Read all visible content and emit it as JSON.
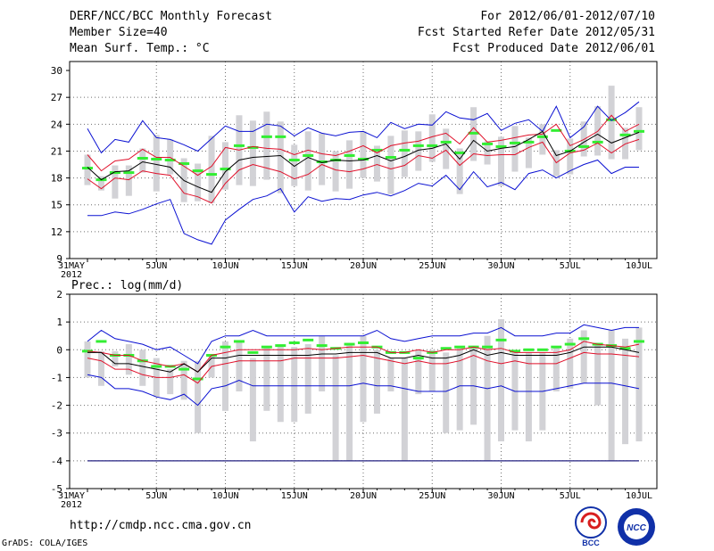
{
  "header": {
    "title": "DERF/NCC/BCC Monthly Forecast",
    "member_size": "Member Size=40",
    "variable_top": "Mean Surf. Temp.: °C",
    "period": "For 2012/06/01-2012/07/10",
    "started": "Fcst Started Refer Date 2012/05/31",
    "produced": "Fcst Produced Date 2012/06/01"
  },
  "footer": {
    "url": "http://cmdp.ncc.cma.gov.cn",
    "grads": "GrADS: COLA/IGES",
    "logo_bcc": "BCC",
    "logo_ncc": "NCC"
  },
  "colors": {
    "bar": "#d2d2d6",
    "mean": "#000000",
    "spread": "#e0102a",
    "extreme": "#0a10d2",
    "climo": "#33ee33",
    "zeroline": "#232080",
    "grid": "#6f6f6f"
  },
  "chart_data": [
    {
      "type": "line",
      "title": "Mean Surf. Temp.: °C",
      "x_tick_labels": [
        "31MAY\n2012",
        "5JUN",
        "10JUN",
        "15JUN",
        "20JUN",
        "25JUN",
        "30JUN",
        "5JUL",
        "10JUL"
      ],
      "ylim": [
        9,
        31
      ],
      "y_ticks": [
        9,
        12,
        15,
        18,
        21,
        24,
        27,
        30
      ],
      "grid": true,
      "series": [
        {
          "name": "max",
          "values": [
            23.5,
            20.8,
            22.3,
            22.0,
            24.4,
            22.5,
            22.3,
            21.7,
            21.0,
            22.4,
            23.8,
            23.2,
            23.2,
            24.0,
            23.8,
            22.7,
            23.6,
            23.0,
            22.7,
            23.1,
            23.2,
            22.5,
            24.2,
            23.5,
            24.0,
            23.9,
            25.4,
            24.7,
            24.5,
            25.2,
            23.3,
            24.1,
            24.5,
            23.2,
            26.0,
            22.5,
            23.7,
            26.0,
            24.4,
            25.3,
            26.5
          ]
        },
        {
          "name": "upper",
          "values": [
            20.6,
            18.8,
            19.9,
            20.1,
            21.2,
            20.3,
            20.3,
            19.3,
            18.3,
            19.3,
            21.4,
            21.1,
            21.5,
            21.3,
            21.2,
            20.6,
            21.1,
            20.7,
            20.5,
            21.0,
            21.6,
            20.8,
            21.6,
            21.9,
            22.1,
            22.6,
            23.0,
            21.8,
            23.6,
            22.0,
            22.2,
            22.5,
            22.8,
            22.9,
            24.0,
            21.6,
            22.3,
            23.2,
            25.0,
            23.2,
            24.0
          ]
        },
        {
          "name": "mean",
          "values": [
            19.2,
            17.8,
            18.7,
            18.8,
            19.8,
            19.5,
            19.2,
            17.7,
            17.0,
            16.4,
            18.7,
            20.0,
            20.3,
            20.4,
            20.5,
            19.3,
            20.3,
            19.7,
            20.0,
            19.9,
            20.0,
            20.5,
            19.9,
            20.4,
            21.1,
            21.3,
            21.8,
            20.1,
            22.2,
            21.0,
            21.3,
            21.5,
            22.3,
            23.2,
            20.5,
            21.0,
            22.0,
            22.9,
            21.9,
            22.5,
            23.1
          ]
        },
        {
          "name": "lower",
          "values": [
            17.9,
            16.8,
            18.0,
            17.8,
            18.8,
            18.5,
            18.3,
            16.3,
            15.9,
            15.2,
            17.4,
            18.9,
            19.5,
            19.1,
            18.7,
            17.9,
            18.4,
            19.5,
            18.9,
            18.7,
            19.0,
            19.5,
            19.0,
            19.4,
            20.5,
            20.2,
            21.1,
            19.4,
            20.7,
            20.5,
            20.6,
            20.6,
            21.4,
            22.0,
            19.7,
            20.8,
            21.1,
            21.9,
            20.8,
            21.8,
            22.3
          ]
        },
        {
          "name": "min",
          "values": [
            13.8,
            13.8,
            14.2,
            14.0,
            14.5,
            15.1,
            15.6,
            11.8,
            11.1,
            10.6,
            13.3,
            14.5,
            15.6,
            16.0,
            16.8,
            14.2,
            15.9,
            15.4,
            15.7,
            15.6,
            16.1,
            16.4,
            16.0,
            16.6,
            17.4,
            17.1,
            18.3,
            16.7,
            18.7,
            17.0,
            17.5,
            16.7,
            18.5,
            18.9,
            18.0,
            18.8,
            19.5,
            20.0,
            18.5,
            19.2,
            19.2
          ]
        },
        {
          "name": "climatology",
          "values": [
            19.1,
            17.8,
            18.6,
            18.6,
            20.2,
            20.1,
            20.0,
            19.6,
            18.8,
            18.4,
            19.0,
            21.6,
            21.4,
            22.6,
            22.6,
            20.0,
            20.5,
            19.8,
            20.0,
            20.5,
            20.1,
            21.1,
            20.3,
            21.1,
            21.6,
            21.6,
            22.0,
            20.8,
            23.0,
            21.8,
            21.5,
            21.9,
            22.0,
            22.6,
            23.3,
            21.0,
            21.5,
            22.0,
            24.5,
            22.8,
            23.2
          ]
        },
        {
          "name": "box_top",
          "values": [
            20.6,
            18.2,
            19.4,
            19.4,
            21.3,
            22.8,
            22.3,
            20.2,
            19.6,
            22.7,
            22.0,
            25.0,
            24.4,
            25.4,
            24.3,
            21.7,
            23.2,
            23.0,
            21.0,
            22.2,
            23.2,
            21.6,
            22.7,
            23.3,
            23.2,
            25.1,
            23.5,
            21.3,
            25.9,
            22.1,
            22.6,
            23.8,
            22.5,
            24.0,
            21.1,
            22.4,
            24.3,
            26.0,
            28.3,
            23.6,
            25.9
          ]
        },
        {
          "name": "box_bottom",
          "values": [
            17.2,
            16.6,
            15.7,
            16.0,
            18.6,
            16.5,
            18.4,
            15.3,
            15.4,
            15.2,
            16.7,
            17.2,
            17.1,
            17.8,
            16.3,
            17.1,
            16.6,
            17.2,
            16.5,
            16.8,
            18.0,
            17.6,
            16.2,
            18.1,
            18.8,
            19.8,
            19.0,
            16.2,
            19.9,
            19.5,
            17.1,
            18.7,
            19.1,
            20.6,
            18.2,
            18.4,
            20.4,
            20.5,
            20.1,
            20.1,
            21.1
          ]
        }
      ]
    },
    {
      "type": "line",
      "title": "Prec.: log(mm/d)",
      "x_tick_labels": [
        "31MAY\n2012",
        "5JUN",
        "10JUN",
        "15JUN",
        "20JUN",
        "25JUN",
        "30JUN",
        "5JUL",
        "10JUL"
      ],
      "ylim": [
        -5,
        2
      ],
      "y_ticks": [
        -5,
        -4,
        -3,
        -2,
        -1,
        0,
        1,
        2
      ],
      "grid": true,
      "reference_line": -4,
      "series": [
        {
          "name": "max",
          "values": [
            0.3,
            0.7,
            0.4,
            0.3,
            0.2,
            0.0,
            0.1,
            -0.2,
            -0.5,
            0.3,
            0.5,
            0.5,
            0.7,
            0.5,
            0.5,
            0.5,
            0.5,
            0.5,
            0.5,
            0.5,
            0.5,
            0.7,
            0.4,
            0.3,
            0.4,
            0.5,
            0.5,
            0.5,
            0.6,
            0.6,
            0.8,
            0.5,
            0.5,
            0.5,
            0.6,
            0.6,
            0.9,
            0.8,
            0.7,
            0.8,
            0.8
          ]
        },
        {
          "name": "upper",
          "values": [
            -0.05,
            -0.1,
            -0.2,
            -0.2,
            -0.4,
            -0.5,
            -0.6,
            -0.5,
            -0.8,
            -0.2,
            -0.1,
            0.0,
            0.0,
            0.0,
            0.0,
            0.0,
            0.05,
            0.0,
            0.05,
            0.1,
            0.1,
            0.1,
            -0.1,
            -0.1,
            0.0,
            -0.1,
            0.0,
            0.0,
            0.1,
            0.0,
            0.05,
            -0.1,
            -0.1,
            -0.1,
            -0.1,
            0.0,
            0.3,
            0.2,
            0.15,
            0.1,
            0.2
          ]
        },
        {
          "name": "mean",
          "values": [
            -0.1,
            -0.1,
            -0.5,
            -0.5,
            -0.6,
            -0.7,
            -0.8,
            -0.5,
            -0.8,
            -0.3,
            -0.3,
            -0.2,
            -0.2,
            -0.2,
            -0.2,
            -0.2,
            -0.2,
            -0.15,
            -0.15,
            -0.1,
            -0.1,
            -0.1,
            -0.3,
            -0.3,
            -0.2,
            -0.3,
            -0.3,
            -0.2,
            0.0,
            -0.2,
            -0.1,
            -0.2,
            -0.2,
            -0.2,
            -0.2,
            -0.1,
            0.1,
            0.1,
            0.1,
            0.0,
            -0.1
          ]
        },
        {
          "name": "lower",
          "values": [
            -0.3,
            -0.4,
            -0.7,
            -0.7,
            -0.9,
            -1.0,
            -1.0,
            -0.9,
            -1.2,
            -0.6,
            -0.5,
            -0.4,
            -0.4,
            -0.4,
            -0.4,
            -0.3,
            -0.3,
            -0.3,
            -0.3,
            -0.25,
            -0.2,
            -0.3,
            -0.4,
            -0.5,
            -0.4,
            -0.5,
            -0.5,
            -0.4,
            -0.2,
            -0.4,
            -0.5,
            -0.4,
            -0.5,
            -0.5,
            -0.5,
            -0.3,
            -0.1,
            -0.15,
            -0.15,
            -0.2,
            -0.25
          ]
        },
        {
          "name": "min",
          "values": [
            -0.9,
            -1.0,
            -1.4,
            -1.4,
            -1.5,
            -1.7,
            -1.8,
            -1.6,
            -2.0,
            -1.4,
            -1.3,
            -1.1,
            -1.3,
            -1.3,
            -1.3,
            -1.3,
            -1.3,
            -1.3,
            -1.3,
            -1.3,
            -1.2,
            -1.3,
            -1.3,
            -1.4,
            -1.5,
            -1.5,
            -1.5,
            -1.3,
            -1.3,
            -1.4,
            -1.3,
            -1.5,
            -1.5,
            -1.5,
            -1.4,
            -1.3,
            -1.2,
            -1.2,
            -1.2,
            -1.3,
            -1.4
          ]
        },
        {
          "name": "climatology",
          "values": [
            -0.05,
            0.3,
            -0.2,
            -0.2,
            -0.4,
            -0.6,
            -0.6,
            -0.7,
            -1.05,
            -0.2,
            0.1,
            0.3,
            -0.1,
            0.1,
            0.15,
            0.25,
            0.35,
            0.15,
            0.05,
            0.2,
            0.25,
            0.1,
            -0.1,
            -0.1,
            -0.3,
            -0.1,
            0.05,
            0.1,
            0.1,
            0.1,
            0.35,
            -0.05,
            0.0,
            0.0,
            0.1,
            0.2,
            0.4,
            0.2,
            0.15,
            0.05,
            0.3
          ]
        },
        {
          "name": "box_top",
          "values": [
            0.3,
            -0.05,
            -0.05,
            0.2,
            0.0,
            -0.3,
            -0.7,
            -0.4,
            -0.4,
            -0.2,
            0.3,
            0.3,
            -0.3,
            0.1,
            0.2,
            0.1,
            0.2,
            0.5,
            -0.2,
            0.25,
            0.5,
            0.0,
            -0.3,
            -0.3,
            0.0,
            0.0,
            -0.1,
            0.1,
            0.15,
            0.5,
            1.1,
            -0.1,
            -0.1,
            -0.1,
            0.1,
            0.4,
            0.7,
            0.2,
            0.7,
            0.4,
            0.8
          ]
        },
        {
          "name": "box_bottom",
          "values": [
            -1.0,
            -1.3,
            -0.6,
            -0.9,
            -1.3,
            -1.7,
            -1.6,
            -1.8,
            -3.0,
            -1.0,
            -2.2,
            -1.5,
            -3.3,
            -2.2,
            -2.6,
            -2.6,
            -2.3,
            -1.5,
            -4.0,
            -4.0,
            -2.6,
            -2.3,
            -1.5,
            -4.0,
            -1.6,
            -1.5,
            -3.0,
            -2.9,
            -2.7,
            -4.0,
            -3.3,
            -2.9,
            -3.3,
            -2.9,
            -1.5,
            -1.4,
            -1.2,
            -2.0,
            -4.0,
            -3.4,
            -3.3
          ]
        }
      ]
    }
  ]
}
